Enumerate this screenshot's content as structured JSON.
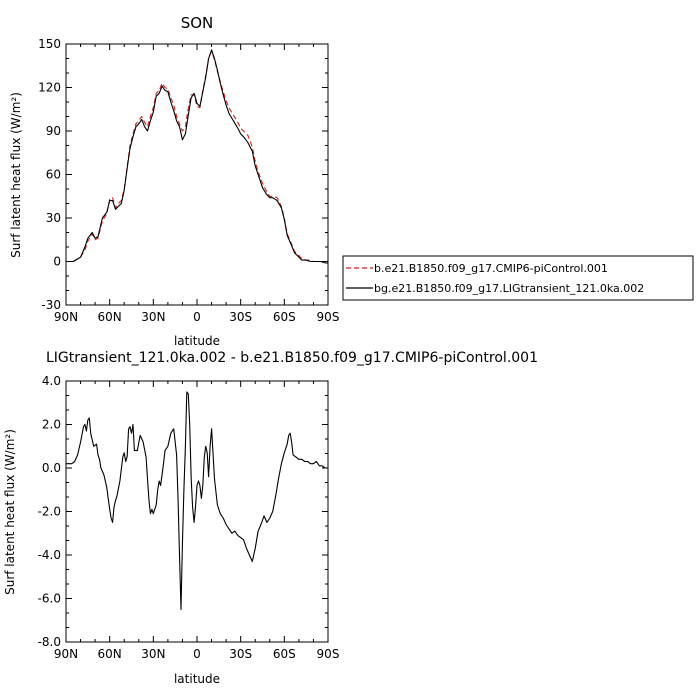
{
  "chart_data": [
    {
      "type": "line",
      "title": "SON",
      "xlabel": "latitude",
      "ylabel": "Surf latent heat flux (W/m²)",
      "xlim": [
        90,
        -90
      ],
      "ylim": [
        -30,
        150
      ],
      "x_ticks": [
        90,
        60,
        30,
        0,
        -30,
        -60,
        -90
      ],
      "x_tick_labels": [
        "90N",
        "60N",
        "30N",
        "0",
        "30S",
        "60S",
        "90S"
      ],
      "y_ticks": [
        -30,
        0,
        30,
        60,
        90,
        120,
        150
      ],
      "y_tick_labels": [
        "-30",
        "0",
        "30",
        "60",
        "90",
        "120",
        "150"
      ],
      "legend_placement": "right",
      "series": [
        {
          "name": "b.e21.B1850.f09_g17.CMIP6-piControl.001",
          "color": "#cc2222",
          "dash": "dashed",
          "x": [
            90,
            85,
            80,
            77,
            75,
            72,
            70,
            68,
            65,
            62,
            60,
            58,
            56,
            54,
            52,
            50,
            48,
            46,
            44,
            42,
            40,
            38,
            36,
            34,
            32,
            30,
            28,
            26,
            24,
            22,
            20,
            18,
            16,
            14,
            12,
            10,
            8,
            6,
            4,
            2,
            0,
            -2,
            -4,
            -6,
            -8,
            -10,
            -12,
            -14,
            -16,
            -18,
            -20,
            -22,
            -25,
            -28,
            -30,
            -32,
            -35,
            -38,
            -40,
            -42,
            -45,
            -48,
            -50,
            -52,
            -55,
            -58,
            -60,
            -62,
            -65,
            -67,
            -70,
            -72,
            -75,
            -78,
            -80,
            -82,
            -85,
            -88,
            -90
          ],
          "y": [
            0,
            0,
            3,
            8,
            14,
            19,
            15,
            16,
            28,
            33,
            43,
            44,
            37,
            40,
            42,
            50,
            65,
            80,
            88,
            95,
            97,
            100,
            96,
            93,
            100,
            106,
            116,
            118,
            123,
            120,
            119,
            113,
            108,
            100,
            95,
            90,
            93,
            106,
            115,
            115,
            107,
            106,
            118,
            128,
            140,
            145,
            139,
            131,
            124,
            117,
            111,
            106,
            101,
            96,
            92,
            90,
            87,
            79,
            69,
            62,
            54,
            48,
            45,
            45,
            44,
            38,
            30,
            19,
            12,
            7,
            4,
            2,
            1,
            1,
            0,
            0,
            0,
            0,
            -1
          ]
        },
        {
          "name": "bg.e21.B1850.f09_g17.LIGtransient_121.0ka.002",
          "color": "#000000",
          "dash": "solid",
          "x": [
            90,
            85,
            80,
            77,
            75,
            72,
            70,
            68,
            65,
            62,
            60,
            58,
            56,
            54,
            52,
            50,
            48,
            46,
            44,
            42,
            40,
            38,
            36,
            34,
            32,
            30,
            28,
            26,
            24,
            22,
            20,
            18,
            16,
            14,
            12,
            10,
            8,
            6,
            4,
            2,
            0,
            -2,
            -4,
            -6,
            -8,
            -10,
            -12,
            -14,
            -16,
            -18,
            -20,
            -22,
            -25,
            -28,
            -30,
            -32,
            -35,
            -38,
            -40,
            -42,
            -45,
            -48,
            -50,
            -52,
            -55,
            -58,
            -60,
            -62,
            -65,
            -67,
            -70,
            -72,
            -75,
            -78,
            -80,
            -82,
            -85,
            -88,
            -90
          ],
          "y": [
            0,
            0,
            3,
            10,
            16,
            20,
            16,
            17,
            30,
            34,
            42,
            42,
            36,
            38,
            40,
            49,
            64,
            78,
            86,
            93,
            95,
            98,
            93,
            90,
            97,
            103,
            114,
            116,
            121,
            118,
            117,
            110,
            104,
            97,
            93,
            84,
            88,
            101,
            113,
            116,
            109,
            107,
            117,
            127,
            140,
            146,
            140,
            132,
            123,
            115,
            108,
            102,
            97,
            92,
            88,
            86,
            82,
            76,
            66,
            60,
            51,
            46,
            44,
            44,
            42,
            37,
            29,
            18,
            11,
            6,
            3,
            1,
            1,
            0,
            0,
            0,
            0,
            -1,
            -1
          ]
        }
      ]
    },
    {
      "type": "line",
      "title": "LIGtransient_121.0ka.002 - b.e21.B1850.f09_g17.CMIP6-piControl.001",
      "xlabel": "latitude",
      "ylabel": "Surf latent heat flux (W/m²)",
      "xlim": [
        90,
        -90
      ],
      "ylim": [
        -8.0,
        4.0
      ],
      "x_ticks": [
        90,
        60,
        30,
        0,
        -30,
        -60,
        -90
      ],
      "x_tick_labels": [
        "90N",
        "60N",
        "30N",
        "0",
        "30S",
        "60S",
        "90S"
      ],
      "y_ticks": [
        -8,
        -6,
        -4,
        -2,
        0,
        2,
        4
      ],
      "y_tick_labels": [
        "-8.0",
        "-6.0",
        "-4.0",
        "-2.0",
        "0.0",
        "2.0",
        "4.0"
      ],
      "series": [
        {
          "name": "",
          "color": "#000000",
          "dash": "solid",
          "x": [
            90,
            86,
            84,
            82,
            80,
            78,
            77,
            76,
            75,
            74,
            73,
            71,
            69,
            68,
            67,
            66,
            64,
            62,
            61,
            60,
            59,
            58,
            57,
            56,
            55,
            53,
            51,
            50,
            49,
            48,
            47,
            46,
            45,
            44,
            43,
            41,
            39,
            37,
            35,
            34,
            33,
            32,
            31,
            30,
            28,
            27,
            26,
            25,
            24,
            23,
            22,
            20,
            18,
            16,
            14,
            13,
            12,
            11,
            10,
            9,
            8,
            7,
            6,
            5,
            4,
            3,
            2,
            1,
            0,
            -1,
            -2,
            -3,
            -4,
            -5,
            -6,
            -7,
            -8,
            -9,
            -10,
            -12,
            -14,
            -16,
            -18,
            -20,
            -22,
            -24,
            -26,
            -28,
            -30,
            -32,
            -34,
            -36,
            -38,
            -40,
            -42,
            -44,
            -46,
            -48,
            -50,
            -52,
            -54,
            -56,
            -58,
            -60,
            -62,
            -63,
            -64,
            -65,
            -66,
            -68,
            -70,
            -72,
            -74,
            -76,
            -78,
            -80,
            -82,
            -84,
            -86,
            -88,
            -90
          ],
          "y": [
            0.2,
            0.2,
            0.3,
            0.6,
            1.2,
            1.9,
            2.0,
            1.7,
            2.2,
            2.3,
            1.6,
            1.0,
            1.1,
            0.6,
            0.4,
            0.0,
            -0.3,
            -0.9,
            -1.4,
            -1.9,
            -2.3,
            -2.5,
            -1.8,
            -1.5,
            -1.3,
            -0.6,
            0.5,
            0.7,
            0.3,
            0.5,
            1.8,
            1.9,
            1.6,
            2.0,
            0.8,
            0.8,
            1.5,
            1.2,
            0.5,
            -0.5,
            -1.5,
            -2.1,
            -1.9,
            -2.1,
            -1.7,
            -1.0,
            -0.6,
            -0.8,
            -0.3,
            0.2,
            0.8,
            1.0,
            1.6,
            1.8,
            0.6,
            -1.5,
            -4.0,
            -6.5,
            -3.5,
            -1.0,
            1.0,
            3.5,
            3.4,
            2.0,
            -0.5,
            -1.8,
            -2.5,
            -1.8,
            -0.8,
            -0.6,
            -0.8,
            -1.4,
            -0.8,
            0.5,
            1.0,
            0.7,
            -0.4,
            1.0,
            1.8,
            -0.5,
            -1.7,
            -2.1,
            -2.3,
            -2.6,
            -2.8,
            -3.0,
            -2.9,
            -3.1,
            -3.2,
            -3.3,
            -3.7,
            -4.0,
            -4.3,
            -3.7,
            -2.9,
            -2.6,
            -2.2,
            -2.5,
            -2.3,
            -2.0,
            -1.3,
            -0.5,
            0.2,
            0.7,
            1.1,
            1.5,
            1.6,
            1.2,
            0.6,
            0.5,
            0.4,
            0.4,
            0.3,
            0.3,
            0.2,
            0.2,
            0.3,
            0.1,
            0.1,
            0.0,
            0.0
          ]
        }
      ]
    }
  ]
}
